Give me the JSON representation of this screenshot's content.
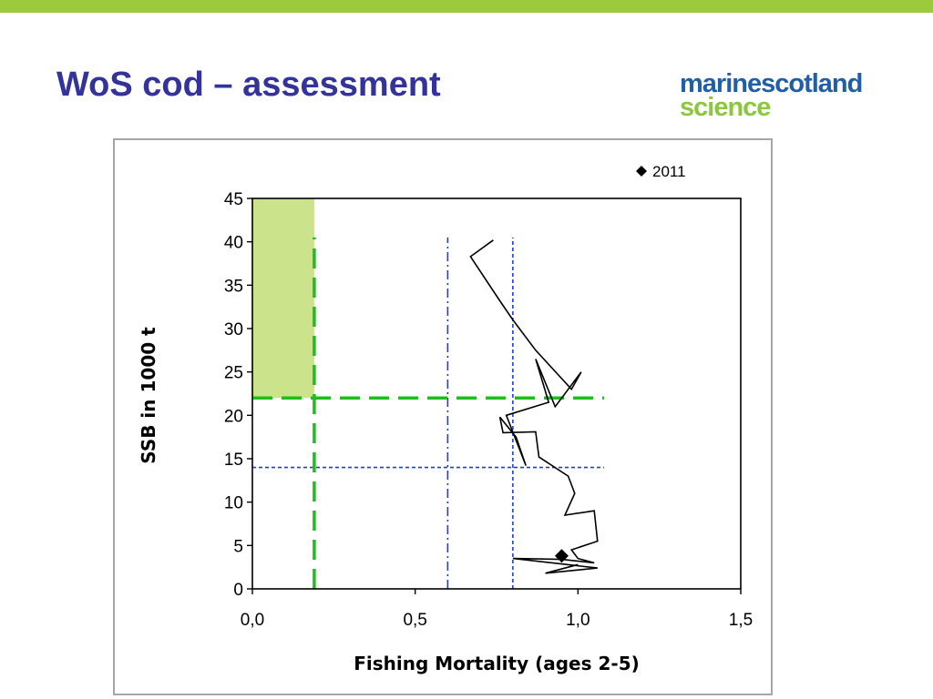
{
  "slide": {
    "title": "WoS cod – assessment",
    "accent_bar_color": "#9bcb3c",
    "title_color": "#333399"
  },
  "logo": {
    "word1": "marine",
    "word2": "scotland",
    "word3": "science",
    "color_blue": "#1f5fa8",
    "color_green": "#8dc63f"
  },
  "chart_data": {
    "type": "line",
    "xlabel": "Fishing Mortality (ages 2-5)",
    "ylabel": "SSB in 1000 t",
    "xlim": [
      0,
      1.5
    ],
    "ylim": [
      0,
      45
    ],
    "x_ticks": [
      0,
      0.5,
      1.0,
      1.5
    ],
    "x_tick_labels": [
      "0,0",
      "0,5",
      "1,0",
      "1,5"
    ],
    "y_ticks": [
      0,
      5,
      10,
      15,
      20,
      25,
      30,
      35,
      40,
      45
    ],
    "y_tick_labels": [
      "0",
      "5",
      "10",
      "15",
      "20",
      "25",
      "30",
      "35",
      "40",
      "45"
    ],
    "legend": {
      "label": "2011",
      "marker": "diamond",
      "position": "top-right"
    },
    "series": [
      {
        "kind": "trajectory",
        "color": "#000000",
        "points": [
          [
            0.74,
            40.2
          ],
          [
            0.67,
            38.3
          ],
          [
            0.76,
            33.2
          ],
          [
            0.8,
            31.0
          ],
          [
            0.87,
            27.5
          ],
          [
            0.98,
            23.0
          ],
          [
            1.01,
            25.0
          ],
          [
            0.93,
            21.0
          ],
          [
            0.87,
            26.5
          ],
          [
            0.91,
            21.5
          ],
          [
            0.78,
            20.0
          ],
          [
            0.84,
            14.2
          ],
          [
            0.81,
            17.5
          ],
          [
            0.76,
            19.8
          ],
          [
            0.77,
            18.0
          ],
          [
            0.87,
            18.1
          ],
          [
            0.88,
            15.2
          ],
          [
            0.97,
            13.0
          ],
          [
            0.99,
            11.0
          ],
          [
            0.96,
            8.5
          ],
          [
            1.05,
            9.0
          ],
          [
            1.06,
            5.5
          ],
          [
            0.98,
            4.5
          ],
          [
            1.0,
            3.5
          ],
          [
            1.05,
            3.0
          ],
          [
            0.95,
            3.4
          ],
          [
            0.8,
            3.5
          ],
          [
            1.06,
            2.4
          ],
          [
            0.9,
            1.8
          ],
          [
            1.0,
            2.8
          ]
        ]
      }
    ],
    "current_point": {
      "label": "2011",
      "x": 0.95,
      "y": 3.8
    },
    "reference_lines": [
      {
        "orientation": "vertical",
        "x": 0.6,
        "style": "dash-dot",
        "color": "#1f3fd0",
        "y_range": [
          0,
          40.5
        ]
      },
      {
        "orientation": "vertical",
        "x": 0.8,
        "style": "dotted",
        "color": "#1f3fd0",
        "y_range": [
          0,
          40.5
        ]
      },
      {
        "orientation": "horizontal",
        "y": 14.0,
        "style": "dotted",
        "color": "#1f3fd0",
        "x_range": [
          0,
          1.08
        ]
      },
      {
        "orientation": "vertical",
        "x": 0.19,
        "style": "long-dash",
        "color": "#22bb22",
        "y_range": [
          0,
          40.5
        ]
      },
      {
        "orientation": "horizontal",
        "y": 22.0,
        "style": "long-dash",
        "color": "#22bb22",
        "x_range": [
          0,
          1.08
        ]
      }
    ],
    "target_area": {
      "x_range": [
        0,
        0.19
      ],
      "y_range": [
        22,
        45
      ],
      "color": "#cbe38a"
    },
    "grid": false
  }
}
